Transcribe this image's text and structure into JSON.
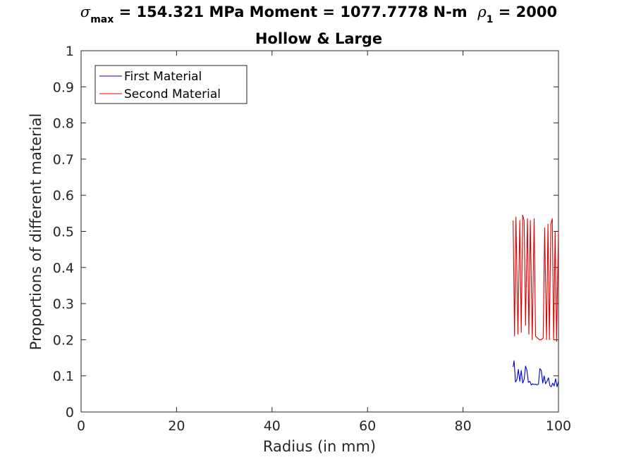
{
  "figure": {
    "title_line1": {
      "sigma_symbol": "σ",
      "sigma_subscript": "max",
      "stress_text": " = 154.321 MPa Moment = 1077.7778 N-m  ",
      "rho_symbol": "ρ",
      "rho_subscript": "1",
      "rho_text": " = 2000"
    },
    "title_line2": "Hollow & Large"
  },
  "chart_data": {
    "type": "line",
    "xlabel": "Radius (in mm)",
    "ylabel": "Proportions of different material",
    "xlim": [
      0,
      100
    ],
    "ylim": [
      0,
      1
    ],
    "xticks": [
      0,
      20,
      40,
      60,
      80,
      100
    ],
    "yticks": [
      0,
      0.1,
      0.2,
      0.3,
      0.4,
      0.5,
      0.6,
      0.7,
      0.8,
      0.9,
      1
    ],
    "ytick_labels": [
      "0",
      "0.1",
      "0.2",
      "0.3",
      "0.4",
      "0.5",
      "0.6",
      "0.7",
      "0.8",
      "0.9",
      "1"
    ],
    "xtick_labels": [
      "0",
      "20",
      "40",
      "60",
      "80",
      "100"
    ],
    "grid": false,
    "legend_position": "top-left",
    "series": [
      {
        "name": "First Material",
        "color": "#0000cc",
        "x": [
          90.5,
          90.7,
          91.0,
          91.3,
          91.6,
          91.9,
          92.2,
          92.5,
          92.8,
          93.1,
          93.4,
          93.7,
          94.0,
          94.3,
          94.6,
          94.9,
          95.2,
          95.5,
          95.8,
          96.1,
          96.4,
          96.7,
          97.0,
          97.3,
          97.6,
          97.9,
          98.2,
          98.5,
          98.8,
          99.1,
          99.4,
          99.7,
          100.0
        ],
        "y": [
          0.125,
          0.142,
          0.083,
          0.09,
          0.118,
          0.085,
          0.115,
          0.08,
          0.09,
          0.127,
          0.115,
          0.082,
          0.085,
          0.075,
          0.078,
          0.076,
          0.077,
          0.075,
          0.077,
          0.12,
          0.115,
          0.08,
          0.1,
          0.078,
          0.085,
          0.095,
          0.073,
          0.07,
          0.08,
          0.072,
          0.092,
          0.07,
          0.085
        ]
      },
      {
        "name": "Second Material",
        "color": "#dd0000",
        "x": [
          90.5,
          90.8,
          91.1,
          91.5,
          91.9,
          92.2,
          92.5,
          92.8,
          93.1,
          93.5,
          93.8,
          94.1,
          94.5,
          94.9,
          95.2,
          95.6,
          96.0,
          96.4,
          96.8,
          97.1,
          97.5,
          97.8,
          98.1,
          98.4,
          98.7,
          99.0,
          99.3,
          99.6,
          100.0
        ],
        "y": [
          0.53,
          0.21,
          0.54,
          0.215,
          0.53,
          0.22,
          0.545,
          0.53,
          0.24,
          0.535,
          0.215,
          0.53,
          0.2,
          0.535,
          0.21,
          0.205,
          0.2,
          0.2,
          0.205,
          0.51,
          0.2,
          0.52,
          0.2,
          0.52,
          0.535,
          0.2,
          0.5,
          0.195,
          0.5
        ]
      }
    ]
  }
}
